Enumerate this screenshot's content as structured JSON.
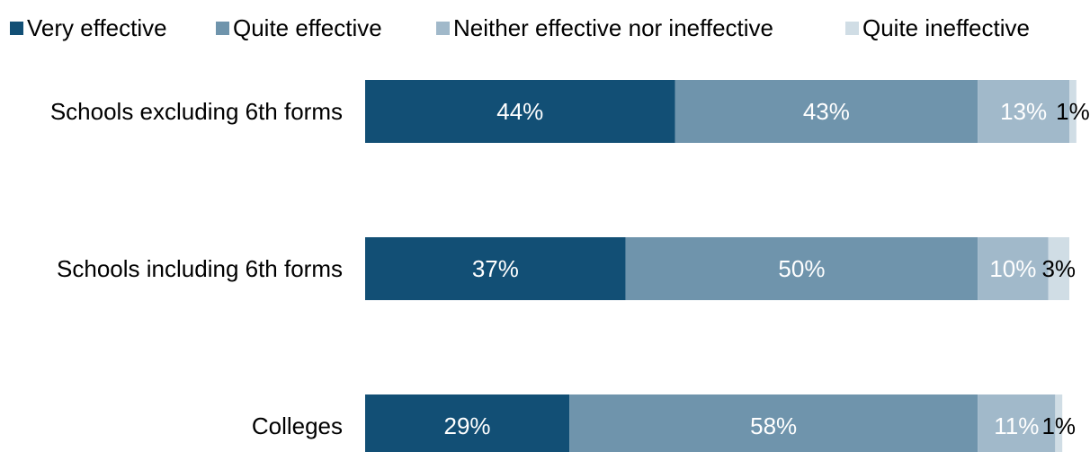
{
  "chart_data": {
    "type": "bar",
    "orientation": "horizontal",
    "stacked": true,
    "title": "",
    "xlabel": "",
    "ylabel": "",
    "xlim": [
      0,
      100
    ],
    "grid": false,
    "legend_position": "top",
    "categories": [
      "Schools excluding 6th forms",
      "Schools including 6th forms",
      "Colleges"
    ],
    "series": [
      {
        "name": "Very effective",
        "color": "#124f75",
        "values": [
          44,
          37,
          29
        ],
        "labels": [
          "44%",
          "37%",
          "29%"
        ],
        "label_color": "#ffffff"
      },
      {
        "name": "Quite effective",
        "color": "#6f94ac",
        "values": [
          43,
          50,
          58
        ],
        "labels": [
          "43%",
          "50%",
          "58%"
        ],
        "label_color": "#ffffff"
      },
      {
        "name": "Neither effective nor ineffective",
        "color": "#a1b9ca",
        "values": [
          13,
          10,
          11
        ],
        "labels": [
          "13%",
          "10%",
          "11%"
        ],
        "label_color": "#ffffff"
      },
      {
        "name": "Quite ineffective",
        "color": "#d0dde5",
        "values": [
          1,
          3,
          1
        ],
        "labels": [
          "1%",
          "3%",
          "1%"
        ],
        "label_color": "#000000"
      }
    ]
  }
}
